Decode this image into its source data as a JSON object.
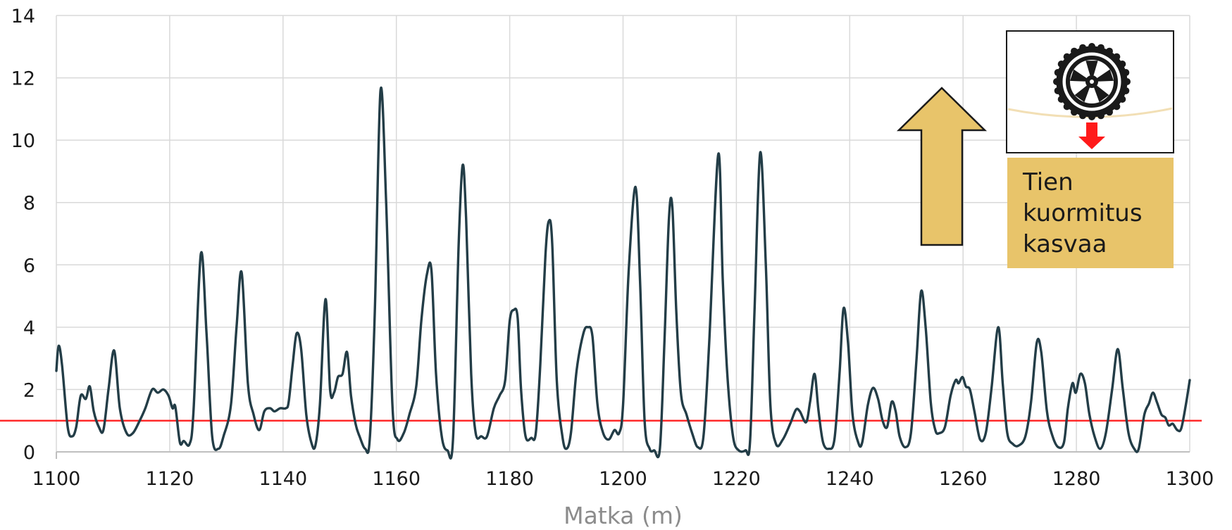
{
  "chart_data": {
    "type": "line",
    "title": "",
    "xlabel": "Matka (m)",
    "ylabel": "",
    "xlim": [
      1100,
      1300
    ],
    "ylim": [
      0,
      14
    ],
    "x_ticks": [
      "1100",
      "1120",
      "1140",
      "1160",
      "1180",
      "1200",
      "1220",
      "1240",
      "1260",
      "1280",
      "1300"
    ],
    "y_ticks": [
      "0",
      "2",
      "4",
      "6",
      "8",
      "10",
      "12",
      "14"
    ],
    "grid": true,
    "line_color": "#233d47",
    "reference_line": {
      "y": 1.0,
      "color": "#ff2020"
    },
    "series": [
      {
        "points": [
          [
            1100,
            2.6
          ],
          [
            1100.4,
            3.4
          ],
          [
            1101,
            2.8
          ],
          [
            1102,
            0.8
          ],
          [
            1102.8,
            0.5
          ],
          [
            1103.5,
            0.8
          ],
          [
            1104.3,
            1.8
          ],
          [
            1105.2,
            1.7
          ],
          [
            1105.9,
            2.1
          ],
          [
            1106.6,
            1.3
          ],
          [
            1107.5,
            0.8
          ],
          [
            1108.3,
            0.7
          ],
          [
            1109.2,
            2.0
          ],
          [
            1110.2,
            3.25
          ],
          [
            1111.2,
            1.4
          ],
          [
            1112.4,
            0.6
          ],
          [
            1113.5,
            0.6
          ],
          [
            1114.7,
            1.0
          ],
          [
            1115.7,
            1.4
          ],
          [
            1116.9,
            2.0
          ],
          [
            1117.9,
            1.9
          ],
          [
            1118.9,
            2.0
          ],
          [
            1119.8,
            1.8
          ],
          [
            1120.5,
            1.4
          ],
          [
            1121.0,
            1.45
          ],
          [
            1121.8,
            0.3
          ],
          [
            1122.5,
            0.35
          ],
          [
            1123.5,
            0.25
          ],
          [
            1124.2,
            1.3
          ],
          [
            1125.5,
            6.35
          ],
          [
            1126.5,
            3.8
          ],
          [
            1127.5,
            0.5
          ],
          [
            1128.6,
            0.1
          ],
          [
            1129.5,
            0.5
          ],
          [
            1130.8,
            1.5
          ],
          [
            1131.8,
            4.0
          ],
          [
            1132.7,
            5.75
          ],
          [
            1133.8,
            2.2
          ],
          [
            1134.8,
            1.2
          ],
          [
            1135.8,
            0.7
          ],
          [
            1136.7,
            1.3
          ],
          [
            1137.7,
            1.4
          ],
          [
            1138.5,
            1.3
          ],
          [
            1139.5,
            1.4
          ],
          [
            1140.5,
            1.4
          ],
          [
            1141.0,
            1.6
          ],
          [
            1141.7,
            2.8
          ],
          [
            1142.4,
            3.8
          ],
          [
            1143.2,
            3.3
          ],
          [
            1144.1,
            1.2
          ],
          [
            1145.0,
            0.3
          ],
          [
            1145.7,
            0.2
          ],
          [
            1146.5,
            1.5
          ],
          [
            1147.5,
            4.9
          ],
          [
            1148.3,
            2.0
          ],
          [
            1149.0,
            1.9
          ],
          [
            1149.7,
            2.4
          ],
          [
            1150.5,
            2.5
          ],
          [
            1151.3,
            3.2
          ],
          [
            1152.0,
            1.8
          ],
          [
            1152.8,
            0.9
          ],
          [
            1153.5,
            0.5
          ],
          [
            1154.5,
            0.1
          ],
          [
            1155.3,
            0.4
          ],
          [
            1156.2,
            4.5
          ],
          [
            1157.2,
            11.6
          ],
          [
            1158.2,
            8.0
          ],
          [
            1159.3,
            1.5
          ],
          [
            1160.2,
            0.4
          ],
          [
            1161.3,
            0.6
          ],
          [
            1162.3,
            1.2
          ],
          [
            1163.5,
            2.1
          ],
          [
            1164.4,
            4.2
          ],
          [
            1165.4,
            5.7
          ],
          [
            1166.2,
            5.8
          ],
          [
            1167.0,
            2.5
          ],
          [
            1168.0,
            0.5
          ],
          [
            1169.0,
            0.05
          ],
          [
            1170.0,
            0.4
          ],
          [
            1171.0,
            6.7
          ],
          [
            1171.7,
            9.2
          ],
          [
            1172.3,
            7.5
          ],
          [
            1173.2,
            2.5
          ],
          [
            1174.0,
            0.6
          ],
          [
            1175.0,
            0.5
          ],
          [
            1176.0,
            0.5
          ],
          [
            1177.2,
            1.4
          ],
          [
            1178.2,
            1.8
          ],
          [
            1179.2,
            2.3
          ],
          [
            1180.0,
            4.2
          ],
          [
            1180.7,
            4.55
          ],
          [
            1181.4,
            4.3
          ],
          [
            1182.0,
            2.0
          ],
          [
            1182.8,
            0.5
          ],
          [
            1183.8,
            0.45
          ],
          [
            1184.6,
            0.6
          ],
          [
            1185.4,
            2.8
          ],
          [
            1186.3,
            6.3
          ],
          [
            1186.9,
            7.4
          ],
          [
            1187.5,
            6.7
          ],
          [
            1188.3,
            2.3
          ],
          [
            1189.3,
            0.5
          ],
          [
            1190.0,
            0.1
          ],
          [
            1190.8,
            0.6
          ],
          [
            1191.8,
            2.6
          ],
          [
            1193.0,
            3.8
          ],
          [
            1193.8,
            4.0
          ],
          [
            1194.6,
            3.7
          ],
          [
            1195.5,
            1.5
          ],
          [
            1196.5,
            0.6
          ],
          [
            1197.5,
            0.4
          ],
          [
            1198.5,
            0.7
          ],
          [
            1199.3,
            0.6
          ],
          [
            1200.0,
            1.5
          ],
          [
            1201.0,
            5.8
          ],
          [
            1202.2,
            8.5
          ],
          [
            1203.0,
            5.5
          ],
          [
            1203.8,
            1.0
          ],
          [
            1204.7,
            0.1
          ],
          [
            1205.5,
            0.05
          ],
          [
            1206.5,
            0.1
          ],
          [
            1207.3,
            3.5
          ],
          [
            1208.1,
            7.5
          ],
          [
            1208.7,
            7.85
          ],
          [
            1209.4,
            4.5
          ],
          [
            1210.2,
            1.9
          ],
          [
            1211.2,
            1.2
          ],
          [
            1212.2,
            0.6
          ],
          [
            1213.2,
            0.15
          ],
          [
            1214.2,
            0.5
          ],
          [
            1215.2,
            3.5
          ],
          [
            1216.8,
            9.55
          ],
          [
            1217.6,
            5.5
          ],
          [
            1218.4,
            2.5
          ],
          [
            1219.4,
            0.5
          ],
          [
            1220.4,
            0.05
          ],
          [
            1221.6,
            0.05
          ],
          [
            1222.4,
            0.3
          ],
          [
            1223.2,
            4.5
          ],
          [
            1224.2,
            9.6
          ],
          [
            1225.2,
            6.0
          ],
          [
            1226.0,
            1.5
          ],
          [
            1227.0,
            0.25
          ],
          [
            1228.2,
            0.4
          ],
          [
            1229.5,
            0.9
          ],
          [
            1230.5,
            1.35
          ],
          [
            1231.2,
            1.3
          ],
          [
            1232.3,
            0.95
          ],
          [
            1233.0,
            1.6
          ],
          [
            1233.8,
            2.5
          ],
          [
            1234.5,
            1.3
          ],
          [
            1235.3,
            0.3
          ],
          [
            1236.3,
            0.1
          ],
          [
            1237.3,
            0.4
          ],
          [
            1238.2,
            2.5
          ],
          [
            1238.9,
            4.6
          ],
          [
            1239.7,
            3.5
          ],
          [
            1240.5,
            1.2
          ],
          [
            1241.5,
            0.3
          ],
          [
            1242.2,
            0.3
          ],
          [
            1243.2,
            1.5
          ],
          [
            1244.1,
            2.05
          ],
          [
            1245.0,
            1.7
          ],
          [
            1245.8,
            1.0
          ],
          [
            1246.6,
            0.8
          ],
          [
            1247.4,
            1.6
          ],
          [
            1248.1,
            1.3
          ],
          [
            1248.8,
            0.5
          ],
          [
            1249.8,
            0.15
          ],
          [
            1250.8,
            0.6
          ],
          [
            1251.8,
            3.0
          ],
          [
            1252.6,
            5.15
          ],
          [
            1253.4,
            4.0
          ],
          [
            1254.3,
            1.6
          ],
          [
            1255.1,
            0.7
          ],
          [
            1255.8,
            0.6
          ],
          [
            1256.8,
            0.8
          ],
          [
            1257.8,
            1.8
          ],
          [
            1258.7,
            2.3
          ],
          [
            1259.2,
            2.2
          ],
          [
            1259.9,
            2.4
          ],
          [
            1260.5,
            2.1
          ],
          [
            1261.2,
            2.0
          ],
          [
            1262.0,
            1.3
          ],
          [
            1263.0,
            0.4
          ],
          [
            1264.0,
            0.6
          ],
          [
            1265.0,
            2.0
          ],
          [
            1266.2,
            4.0
          ],
          [
            1267.0,
            2.2
          ],
          [
            1267.8,
            0.6
          ],
          [
            1268.8,
            0.25
          ],
          [
            1269.8,
            0.2
          ],
          [
            1271.0,
            0.5
          ],
          [
            1272.0,
            1.6
          ],
          [
            1273.0,
            3.5
          ],
          [
            1273.8,
            3.2
          ],
          [
            1274.8,
            1.3
          ],
          [
            1275.8,
            0.5
          ],
          [
            1276.8,
            0.15
          ],
          [
            1277.8,
            0.3
          ],
          [
            1278.5,
            1.4
          ],
          [
            1279.3,
            2.2
          ],
          [
            1279.9,
            1.9
          ],
          [
            1280.7,
            2.5
          ],
          [
            1281.5,
            2.2
          ],
          [
            1282.3,
            1.2
          ],
          [
            1283.2,
            0.5
          ],
          [
            1284.2,
            0.1
          ],
          [
            1285.2,
            0.6
          ],
          [
            1286.3,
            2.0
          ],
          [
            1287.3,
            3.3
          ],
          [
            1288.2,
            2.0
          ],
          [
            1289.2,
            0.6
          ],
          [
            1290.2,
            0.1
          ],
          [
            1291.0,
            0.1
          ],
          [
            1292.0,
            1.2
          ],
          [
            1292.8,
            1.55
          ],
          [
            1293.5,
            1.9
          ],
          [
            1294.2,
            1.6
          ],
          [
            1295.0,
            1.2
          ],
          [
            1295.7,
            1.1
          ],
          [
            1296.3,
            0.85
          ],
          [
            1297.0,
            0.9
          ],
          [
            1297.8,
            0.7
          ],
          [
            1298.5,
            0.75
          ],
          [
            1299.3,
            1.5
          ],
          [
            1300.0,
            2.3
          ]
        ]
      }
    ]
  },
  "callout": {
    "lines": [
      "Tien",
      "kuormitus",
      "kasvaa"
    ],
    "box_color": "#e8c46a",
    "arrow_color": "#e8c46a",
    "icon_name": "wheel-on-road-icon",
    "load_arrow_color": "#ff1a1a"
  }
}
